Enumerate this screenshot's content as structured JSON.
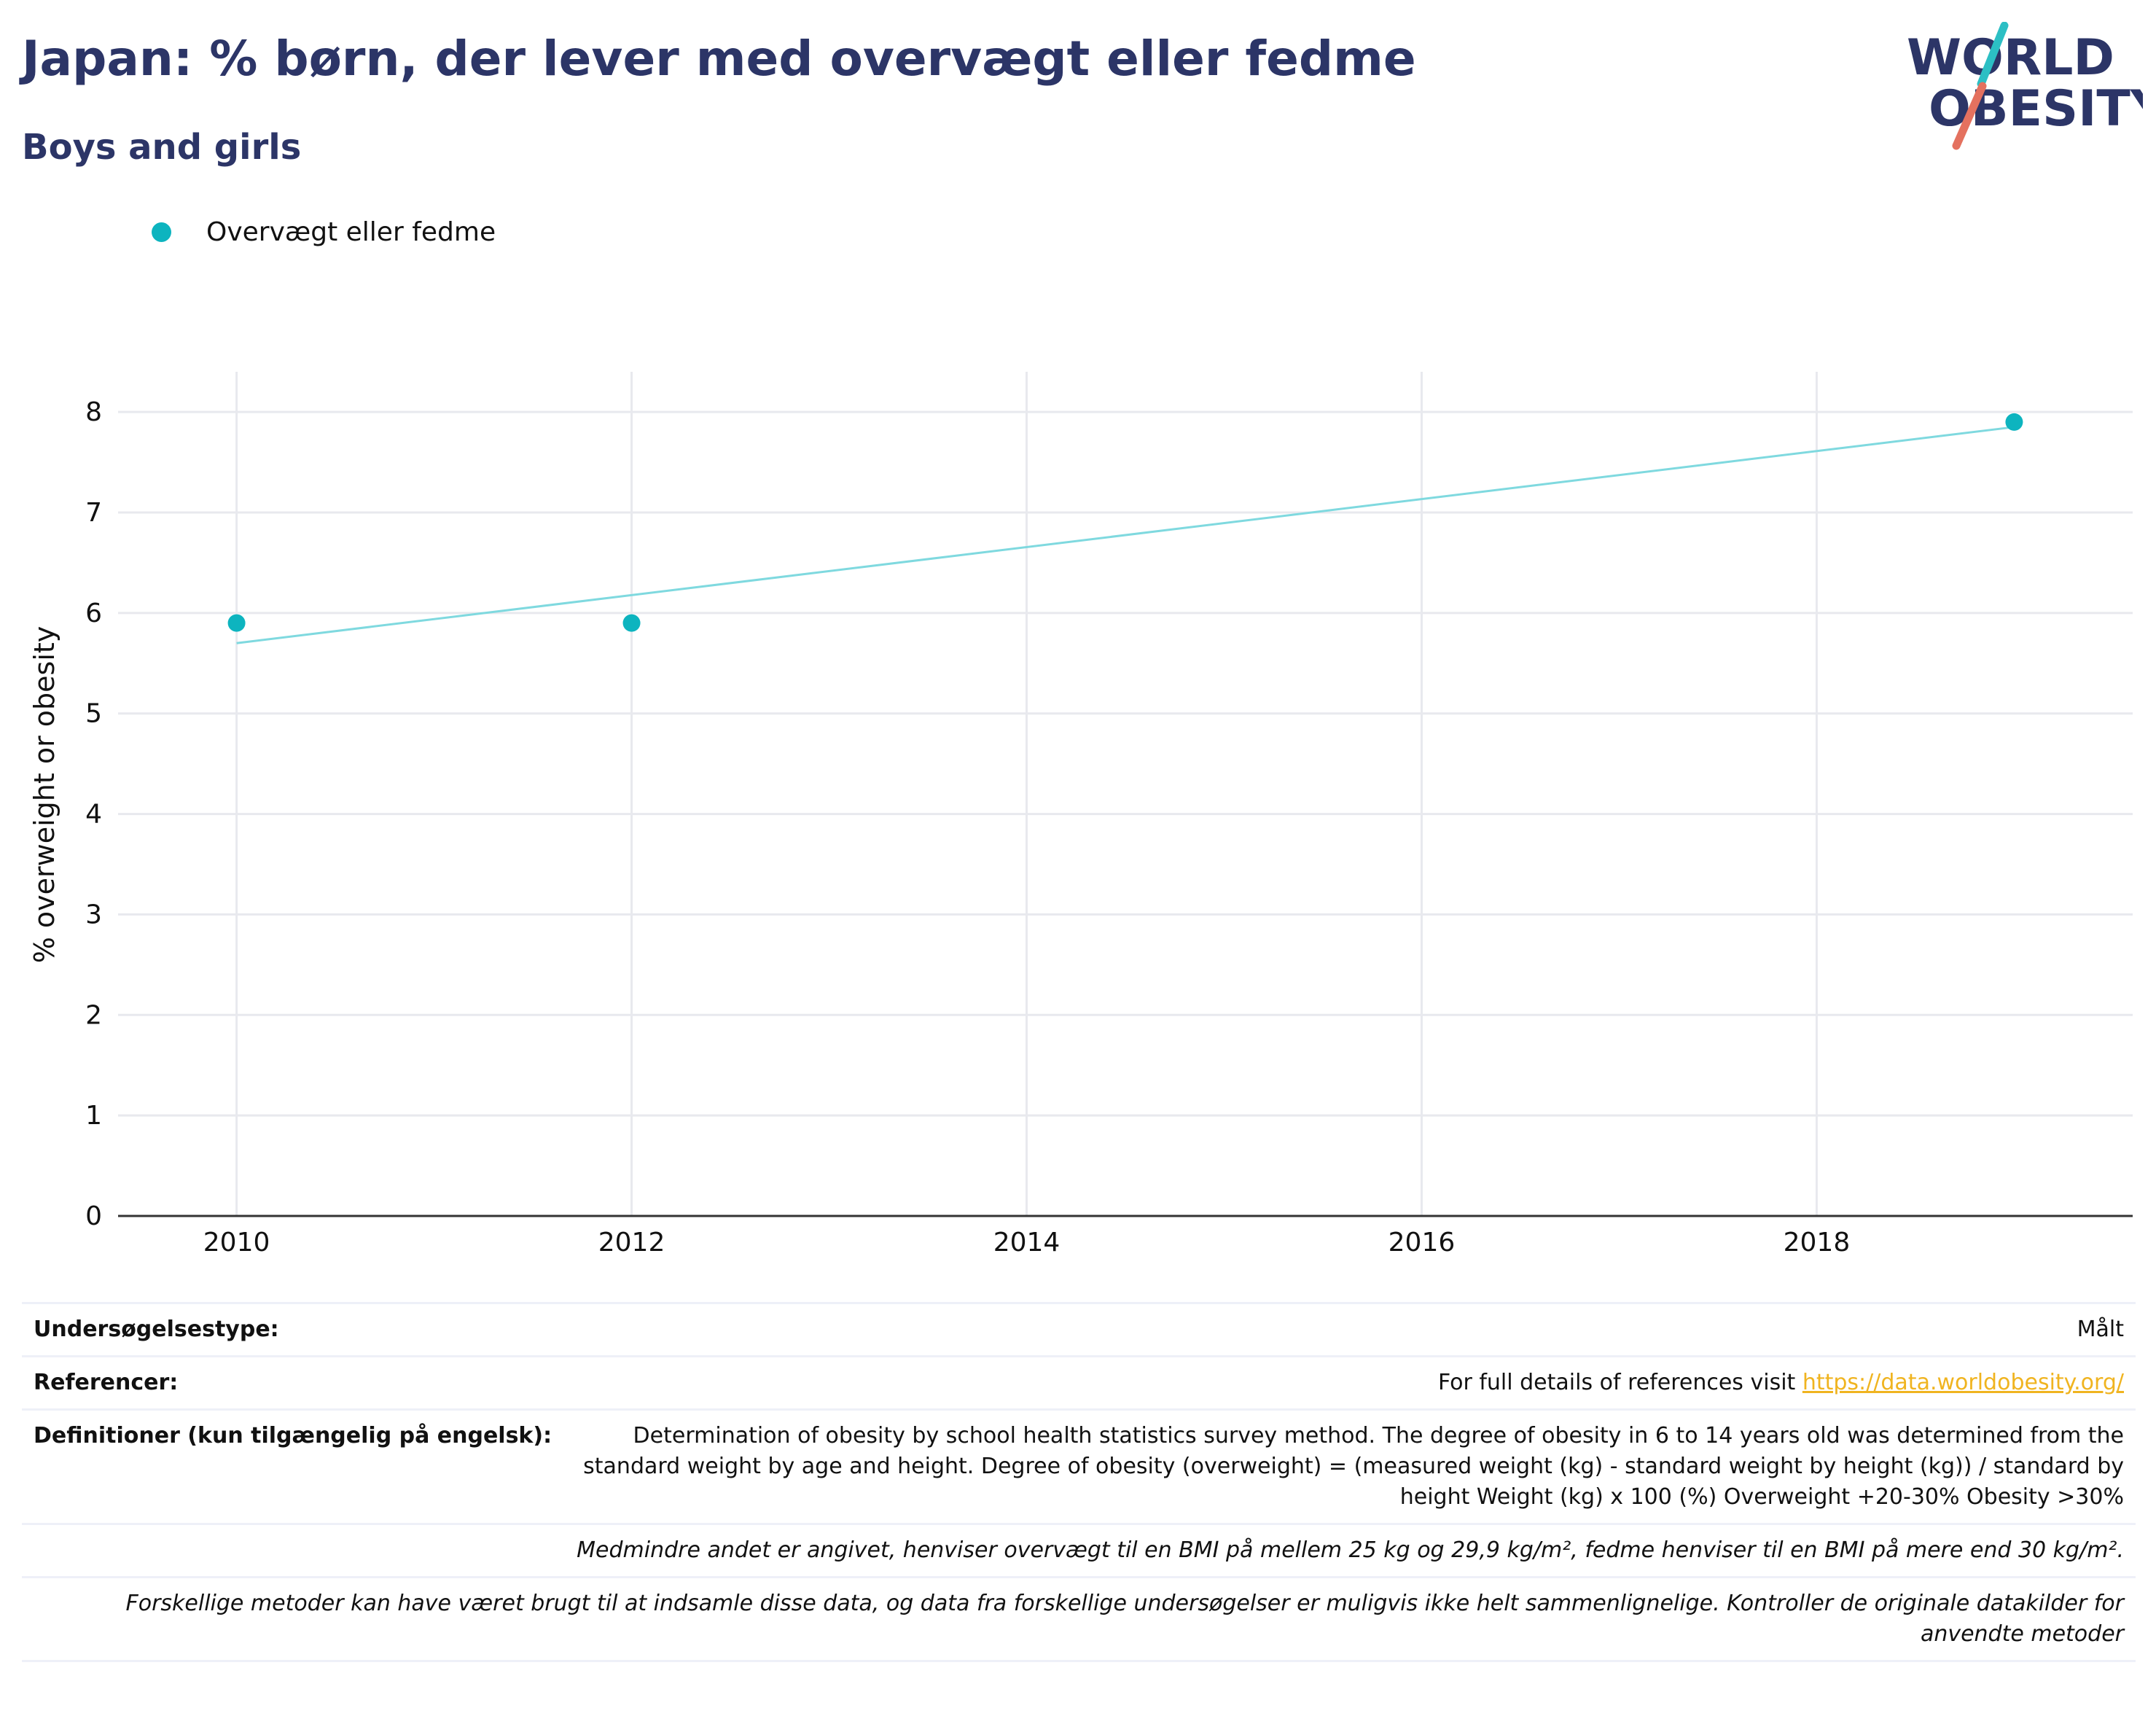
{
  "header": {
    "title": "Japan: % børn, der lever med overvægt eller fedme",
    "subtitle": "Boys and girls"
  },
  "logo": {
    "line1": "WORLD",
    "line2": "OBESITY"
  },
  "colors": {
    "accent": "#0db4bf",
    "trend": "#7fd9df",
    "title": "#2c3567",
    "link": "#f0b420",
    "logo_teal": "#2cbfc4",
    "logo_red": "#e4715f"
  },
  "chart_data": {
    "type": "scatter",
    "title": "Japan: % børn, der lever med overvægt eller fedme",
    "subtitle": "Boys and girls",
    "xlabel": "",
    "ylabel": "% overweight or obesity",
    "xlim": [
      2009.4,
      2019.6
    ],
    "ylim": [
      0,
      8.4
    ],
    "x_ticks": [
      2010,
      2012,
      2014,
      2016,
      2018
    ],
    "y_ticks": [
      0,
      1,
      2,
      3,
      4,
      5,
      6,
      7,
      8
    ],
    "grid": true,
    "legend_position": "top-left",
    "series": [
      {
        "name": "Overvægt eller fedme",
        "x": [
          2010,
          2012,
          2019
        ],
        "y": [
          5.9,
          5.9,
          7.9
        ]
      }
    ],
    "trendline": {
      "x": [
        2010,
        2019
      ],
      "y": [
        5.7,
        7.85
      ]
    }
  },
  "info": {
    "survey_label": "Undersøgelsestype:",
    "survey_value": "Målt",
    "refs_label": "Referencer:",
    "refs_text": "For full details of references visit ",
    "refs_link": "https://data.worldobesity.org/",
    "def_label": "Definitioner (kun tilgængelig på engelsk):",
    "def_text": "Determination of obesity by school health statistics survey method. The degree of obesity in 6 to 14 years old was determined from the standard weight by age and height. Degree of obesity (overweight) = (measured weight (kg) - standard weight by height (kg)) / standard by height Weight (kg) x 100 (%) Overweight +20-30% Obesity >30%",
    "bmi_note": "Medmindre andet er angivet, henviser overvægt til en BMI på mellem 25 kg og 29,9 kg/m², fedme henviser til en BMI på mere end 30 kg/m².",
    "methods_note": "Forskellige metoder kan have været brugt til at indsamle disse data, og data fra forskellige undersøgelser er muligvis ikke helt sammenlignelige. Kontroller de originale datakilder for anvendte metoder"
  }
}
